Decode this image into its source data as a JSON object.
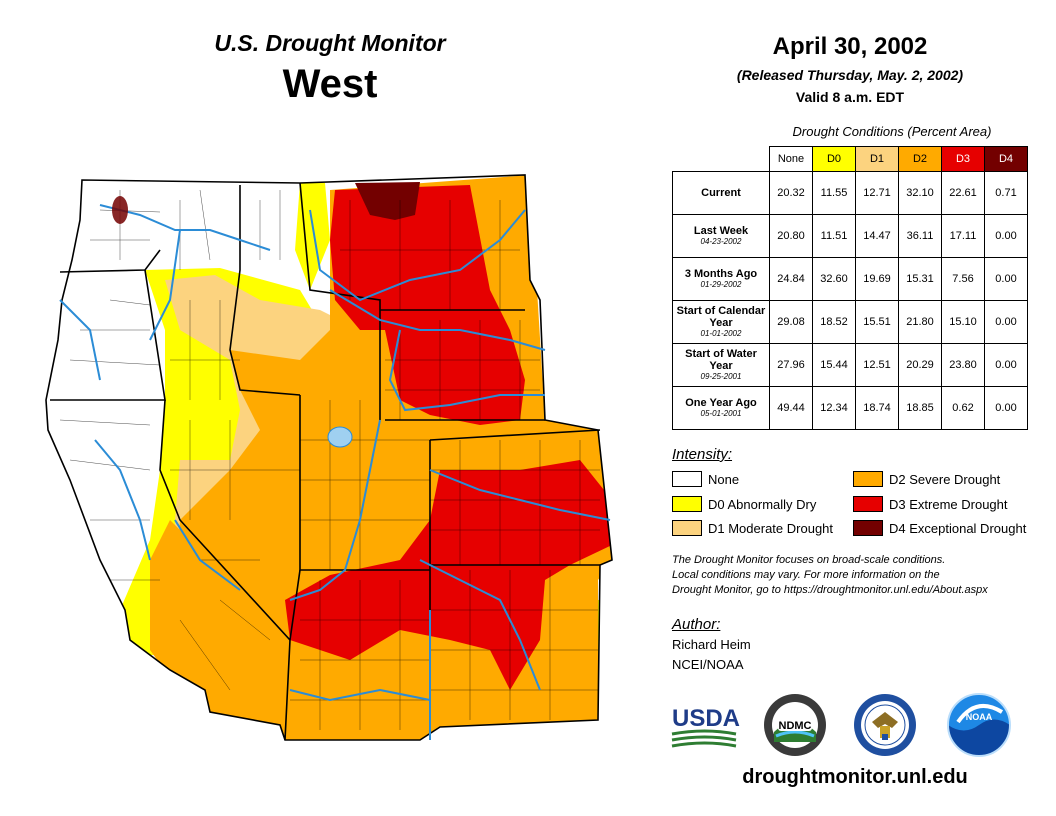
{
  "header": {
    "title": "U.S. Drought Monitor",
    "region": "West",
    "date": "April 30, 2002",
    "released": "(Released Thursday, May. 2, 2002)",
    "valid": "Valid 8 a.m. EDT"
  },
  "table": {
    "caption": "Drought Conditions (Percent Area)",
    "columns": [
      "None",
      "D0",
      "D1",
      "D2",
      "D3",
      "D4"
    ],
    "rows": [
      {
        "label": "Current",
        "date": "",
        "values": [
          "20.32",
          "11.55",
          "12.71",
          "32.10",
          "22.61",
          "0.71"
        ]
      },
      {
        "label": "Last Week",
        "date": "04-23-2002",
        "values": [
          "20.80",
          "11.51",
          "14.47",
          "36.11",
          "17.11",
          "0.00"
        ]
      },
      {
        "label": "3 Months Ago",
        "date": "01-29-2002",
        "values": [
          "24.84",
          "32.60",
          "19.69",
          "15.31",
          "7.56",
          "0.00"
        ]
      },
      {
        "label": "Start of Calendar Year",
        "date": "01-01-2002",
        "values": [
          "29.08",
          "18.52",
          "15.51",
          "21.80",
          "15.10",
          "0.00"
        ]
      },
      {
        "label": "Start of Water Year",
        "date": "09-25-2001",
        "values": [
          "27.96",
          "15.44",
          "12.51",
          "20.29",
          "23.80",
          "0.00"
        ]
      },
      {
        "label": "One Year Ago",
        "date": "05-01-2001",
        "values": [
          "49.44",
          "12.34",
          "18.74",
          "18.85",
          "0.62",
          "0.00"
        ]
      }
    ]
  },
  "legend": {
    "title": "Intensity:",
    "items": [
      {
        "label": "None",
        "color": "#ffffff"
      },
      {
        "label": "D0 Abnormally Dry",
        "color": "#ffff00"
      },
      {
        "label": "D1 Moderate Drought",
        "color": "#fcd37f"
      },
      {
        "label": "D2 Severe Drought",
        "color": "#ffaa00"
      },
      {
        "label": "D3 Extreme Drought",
        "color": "#e60000"
      },
      {
        "label": "D4 Exceptional Drought",
        "color": "#730000"
      }
    ]
  },
  "note": {
    "line1": "The Drought Monitor focuses on broad-scale conditions.",
    "line2": "Local conditions may vary. For more information on the",
    "line3": "Drought Monitor, go to https://droughtmonitor.unl.edu/About.aspx"
  },
  "author": {
    "title": "Author:",
    "name": "Richard Heim",
    "org": "NCEI/NOAA"
  },
  "logos": {
    "usda": "USDA",
    "ndmc": "NDMC",
    "noaa": "NOAA"
  },
  "footer": {
    "url": "droughtmonitor.unl.edu"
  }
}
